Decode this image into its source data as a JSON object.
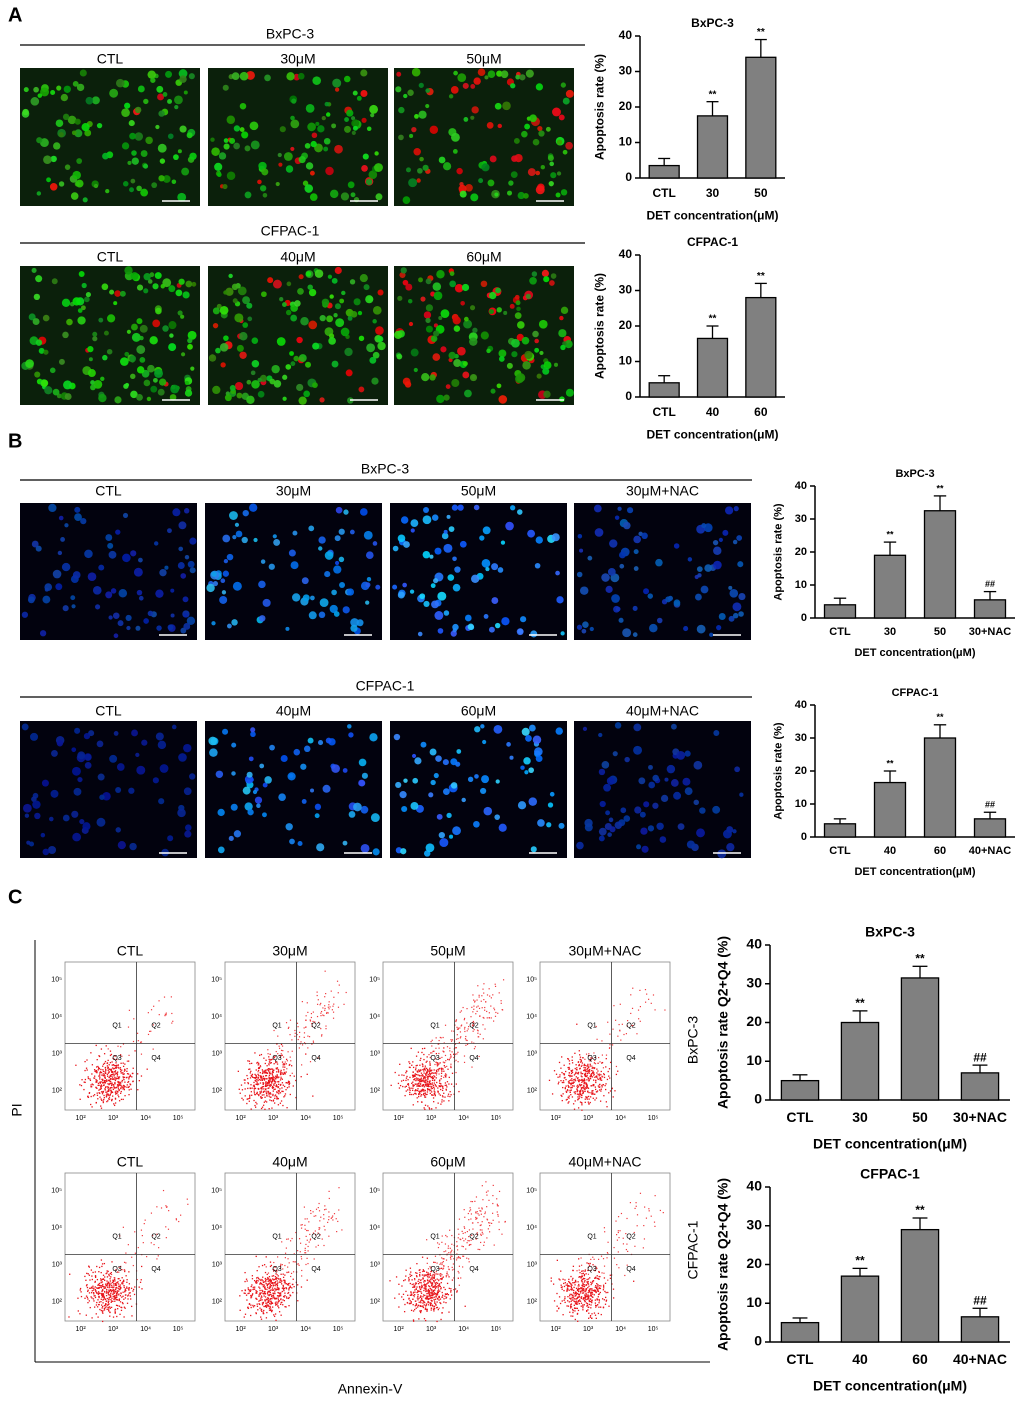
{
  "panel_a": {
    "label": "A",
    "groups": [
      {
        "cell_line": "BxPC-3",
        "conditions": [
          "CTL",
          "30μM",
          "50μM"
        ]
      },
      {
        "cell_line": "CFPAC-1",
        "conditions": [
          "CTL",
          "40μM",
          "60μM"
        ]
      }
    ]
  },
  "panel_b": {
    "label": "B",
    "groups": [
      {
        "cell_line": "BxPC-3",
        "conditions": [
          "CTL",
          "30μM",
          "50μM",
          "30μM+NAC"
        ]
      },
      {
        "cell_line": "CFPAC-1",
        "conditions": [
          "CTL",
          "40μM",
          "60μM",
          "40μM+NAC"
        ]
      }
    ]
  },
  "panel_c": {
    "label": "C",
    "y_axis": "PI",
    "x_axis": "Annexin-V",
    "quadrants": [
      "Q1",
      "Q2",
      "Q3",
      "Q4"
    ],
    "ticks": [
      "10²",
      "10³",
      "10⁴",
      "10⁵"
    ],
    "groups": [
      {
        "cell_line": "BxPC-3",
        "conditions": [
          "CTL",
          "30μM",
          "50μM",
          "30μM+NAC"
        ]
      },
      {
        "cell_line": "CFPAC-1",
        "conditions": [
          "CTL",
          "40μM",
          "60μM",
          "40μM+NAC"
        ]
      }
    ]
  },
  "chart_data": [
    {
      "type": "bar",
      "title": "BxPC-3",
      "x_label": "DET concentration(μM)",
      "y_label": "Apoptosis rate (%)",
      "categories": [
        "CTL",
        "30",
        "50"
      ],
      "values": [
        3.5,
        17.5,
        34
      ],
      "errors": [
        2,
        4,
        5
      ],
      "annotations": [
        null,
        "**",
        "**"
      ],
      "color": "#808080",
      "ylim": [
        0,
        40
      ],
      "yticks": [
        0,
        10,
        20,
        30,
        40
      ]
    },
    {
      "type": "bar",
      "title": "CFPAC-1",
      "x_label": "DET concentration(μM)",
      "y_label": "Apoptosis rate (%)",
      "categories": [
        "CTL",
        "40",
        "60"
      ],
      "values": [
        4,
        16.5,
        28
      ],
      "errors": [
        2,
        3.5,
        4
      ],
      "annotations": [
        null,
        "**",
        "**"
      ],
      "color": "#808080",
      "ylim": [
        0,
        40
      ],
      "yticks": [
        0,
        10,
        20,
        30,
        40
      ]
    },
    {
      "type": "bar",
      "title": "BxPC-3",
      "x_label": "DET concentration(μM)",
      "y_label": "Apoptosis rate (%)",
      "categories": [
        "CTL",
        "30",
        "50",
        "30+NAC"
      ],
      "values": [
        4,
        19,
        32.5,
        5.5
      ],
      "errors": [
        2,
        4,
        4.5,
        2.5
      ],
      "annotations": [
        null,
        "**",
        "**",
        "##"
      ],
      "color": "#808080",
      "ylim": [
        0,
        40
      ],
      "yticks": [
        0,
        10,
        20,
        30,
        40
      ]
    },
    {
      "type": "bar",
      "title": "CFPAC-1",
      "x_label": "DET concentration(μM)",
      "y_label": "Apoptosis rate (%)",
      "categories": [
        "CTL",
        "40",
        "60",
        "40+NAC"
      ],
      "values": [
        4,
        16.5,
        30,
        5.5
      ],
      "errors": [
        1.5,
        3.5,
        4,
        2
      ],
      "annotations": [
        null,
        "**",
        "**",
        "##"
      ],
      "color": "#808080",
      "ylim": [
        0,
        40
      ],
      "yticks": [
        0,
        10,
        20,
        30,
        40
      ]
    },
    {
      "type": "bar",
      "title": "BxPC-3",
      "x_label": "DET concentration(μM)",
      "y_label": "Apoptosis rate Q2+Q4 (%)",
      "categories": [
        "CTL",
        "30",
        "50",
        "30+NAC"
      ],
      "values": [
        5,
        20,
        31.5,
        7
      ],
      "errors": [
        1.5,
        3,
        3,
        2
      ],
      "annotations": [
        null,
        "**",
        "**",
        "##"
      ],
      "color": "#808080",
      "ylim": [
        0,
        40
      ],
      "yticks": [
        0,
        10,
        20,
        30,
        40
      ]
    },
    {
      "type": "bar",
      "title": "CFPAC-1",
      "x_label": "DET concentration(μM)",
      "y_label": "Apoptosis rate Q2+Q4 (%)",
      "categories": [
        "CTL",
        "40",
        "60",
        "40+NAC"
      ],
      "values": [
        5,
        17,
        29,
        6.5
      ],
      "errors": [
        1.2,
        2,
        3,
        2.2
      ],
      "annotations": [
        null,
        "**",
        "**",
        "##"
      ],
      "color": "#808080",
      "ylim": [
        0,
        40
      ],
      "yticks": [
        0,
        10,
        20,
        30,
        40
      ]
    }
  ]
}
